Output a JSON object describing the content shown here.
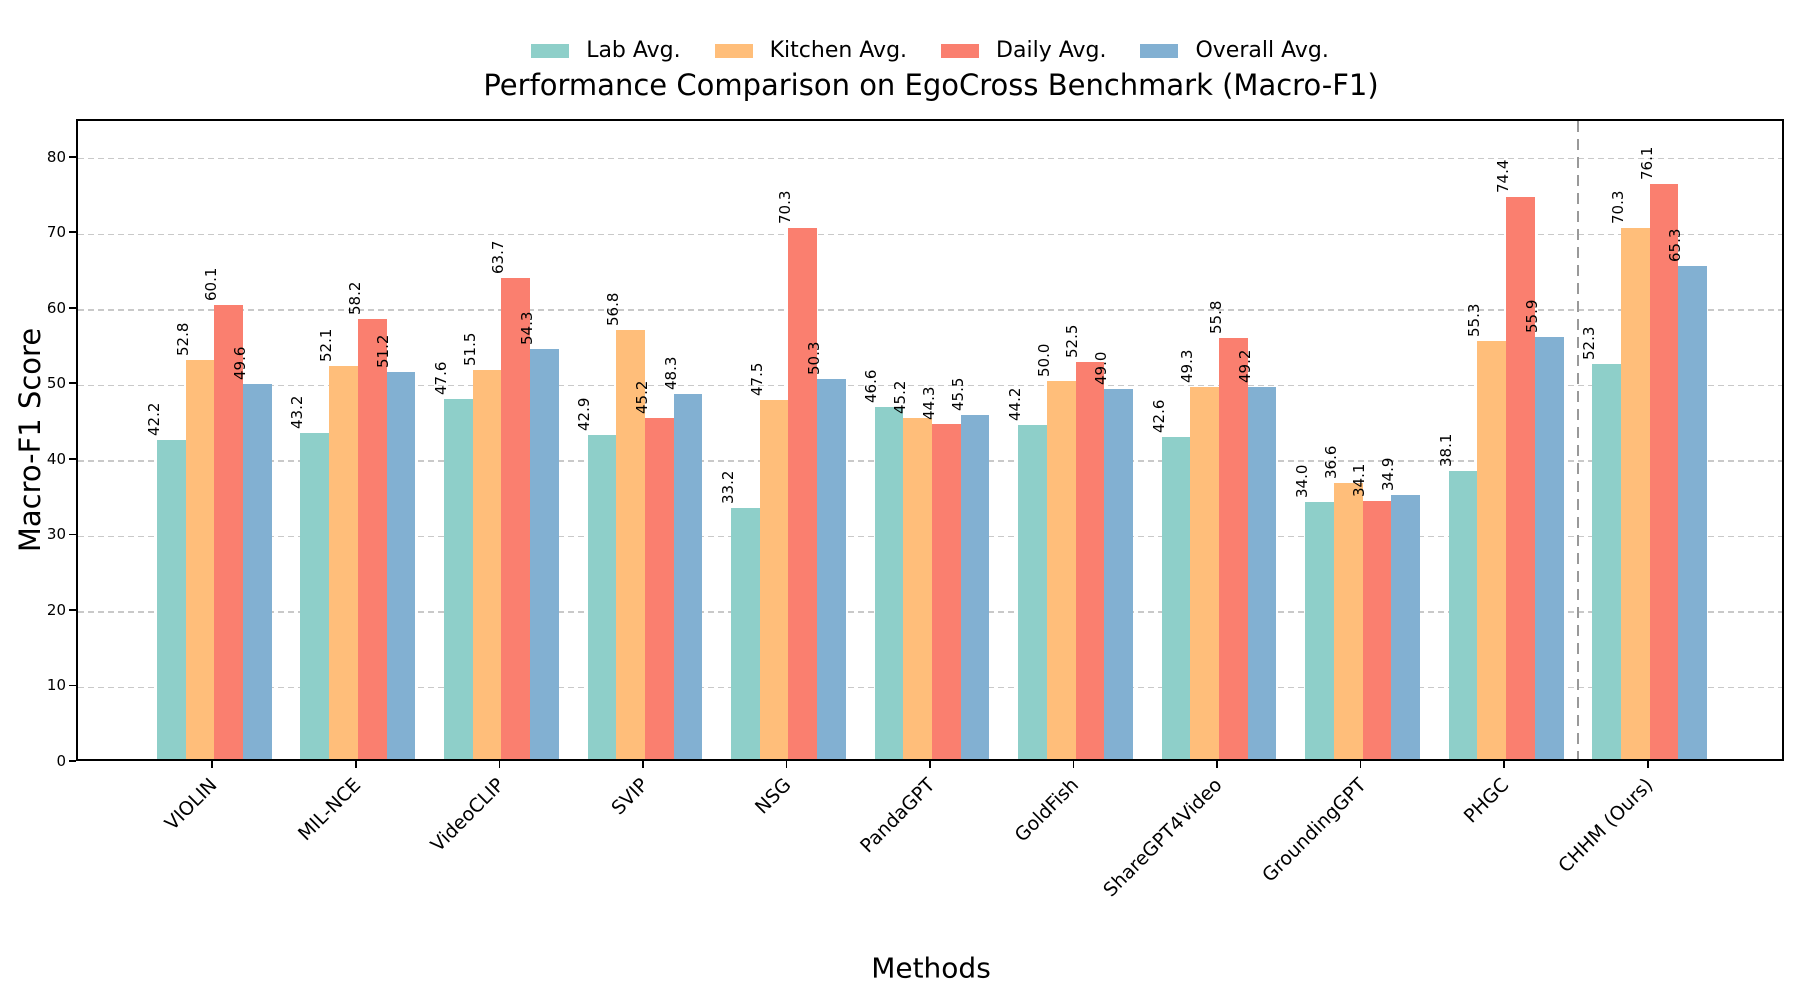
{
  "chart_data": {
    "type": "bar",
    "title": "Performance Comparison on EgoCross Benchmark (Macro-F1)",
    "xlabel": "Methods",
    "ylabel": "Macro-F1 Score",
    "categories": [
      "VIOLIN",
      "MIL-NCE",
      "VideoCLIP",
      "SVIP",
      "NSG",
      "PandaGPT",
      "GoldFish",
      "ShareGPT4Video",
      "GroundingGPT",
      "PHGC",
      "CHHM (Ours)"
    ],
    "series": [
      {
        "name": "Lab Avg.",
        "color": "#8ECFC9",
        "values": [
          42.2,
          43.2,
          47.6,
          42.9,
          33.2,
          46.6,
          44.2,
          42.6,
          34.0,
          38.1,
          52.3
        ]
      },
      {
        "name": "Kitchen Avg.",
        "color": "#FFBE7A",
        "values": [
          52.8,
          52.1,
          51.5,
          56.8,
          47.5,
          45.2,
          50.0,
          49.3,
          36.6,
          55.3,
          70.3
        ]
      },
      {
        "name": "Daily Avg.",
        "color": "#FA7F6F",
        "values": [
          60.1,
          58.2,
          63.7,
          45.2,
          70.3,
          44.3,
          52.5,
          55.8,
          34.1,
          74.4,
          76.1
        ]
      },
      {
        "name": "Overall Avg.",
        "color": "#82B0D2",
        "values": [
          49.6,
          51.2,
          54.3,
          48.3,
          50.3,
          45.5,
          49.0,
          49.2,
          34.9,
          55.9,
          65.3
        ]
      }
    ],
    "ylim": [
      0,
      85
    ],
    "yticks": [
      0,
      10,
      20,
      30,
      40,
      50,
      60,
      70,
      80
    ],
    "bar_width_units": 0.2,
    "grid": "horizontal dashed",
    "grid_color": "#c9c9c9",
    "separator_after_category": "PHGC",
    "separator_color": "#999999",
    "legend_position": "top center",
    "value_label_decimals": 1
  }
}
